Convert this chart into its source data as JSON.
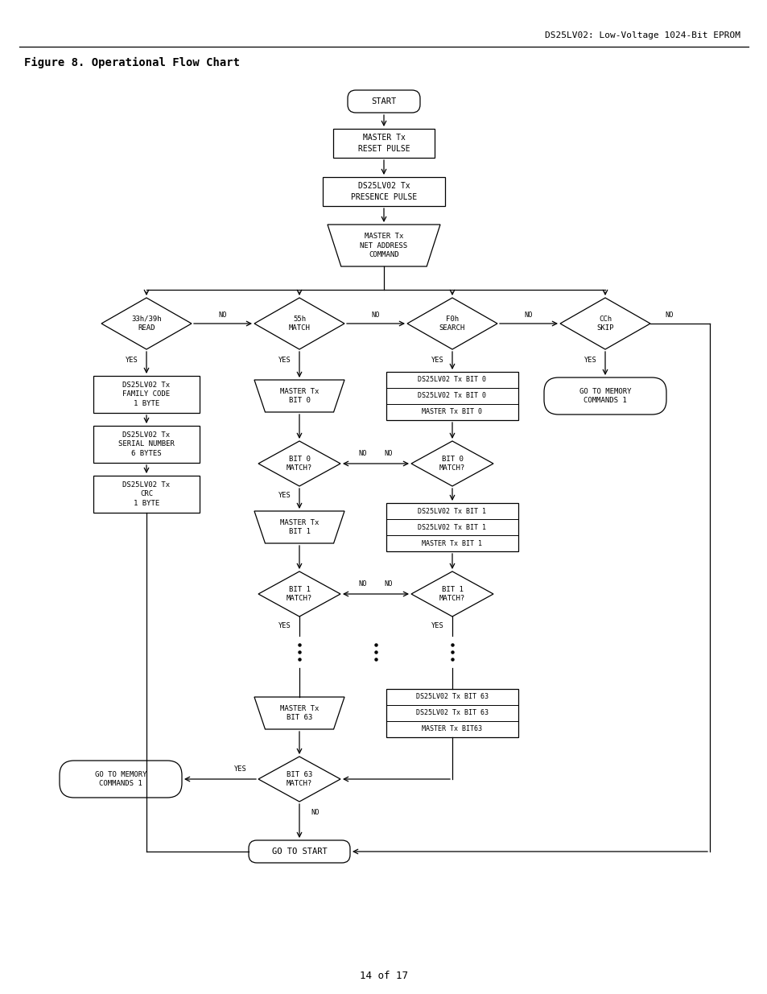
{
  "header": "DS25LV02: Low-Voltage 1024-Bit EPROM",
  "title": "Figure 8. Operational Flow Chart",
  "footer": "14 of 17",
  "bg": "#ffffff",
  "lc": "#000000"
}
